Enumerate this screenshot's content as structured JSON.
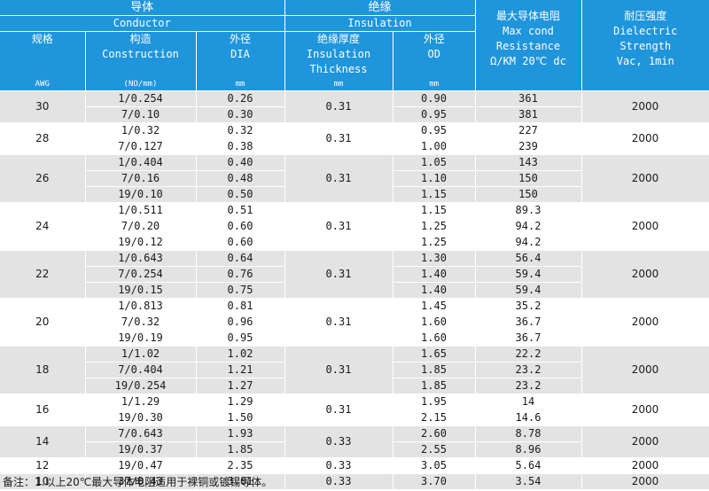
{
  "header": {
    "conductor_zh": "导体",
    "conductor_en": "Conductor",
    "insulation_zh": "绝缘",
    "insulation_en": "Insulation",
    "gauge_zh": "规格",
    "gauge_unit": "AWG",
    "construction_zh": "构造",
    "construction_en": "Construction",
    "construction_unit": "(NO/mm)",
    "dia_zh": "外径",
    "dia_en": "DIA",
    "dia_unit": "mm",
    "thickness_zh": "绝缘厚度",
    "thickness_en1": "Insulation",
    "thickness_en2": "Thickness",
    "thickness_unit": "mm",
    "od_zh": "外径",
    "od_en": "OD",
    "od_unit": "mm",
    "resistance_zh": "最大导体电阻",
    "resistance_en1": "Max cond",
    "resistance_en2": "Resistance",
    "resistance_en3": "Ω/KM 20℃ dc",
    "dielectric_zh": "耐压强度",
    "dielectric_en1": "Dielectric",
    "dielectric_en2": "Strength",
    "dielectric_en3": "Vac, 1min"
  },
  "groups": [
    {
      "awg": "30",
      "thickness": "0.31",
      "strength": "2000",
      "rows": [
        {
          "construction": "1/0.254",
          "dia": "0.26",
          "od": "0.90",
          "resistance": "361"
        },
        {
          "construction": "7/0.10",
          "dia": "0.30",
          "od": "0.95",
          "resistance": "381"
        }
      ]
    },
    {
      "awg": "28",
      "thickness": "0.31",
      "strength": "2000",
      "rows": [
        {
          "construction": "1/0.32",
          "dia": "0.32",
          "od": "0.95",
          "resistance": "227"
        },
        {
          "construction": "7/0.127",
          "dia": "0.38",
          "od": "1.00",
          "resistance": "239"
        }
      ]
    },
    {
      "awg": "26",
      "thickness": "0.31",
      "strength": "2000",
      "rows": [
        {
          "construction": "1/0.404",
          "dia": "0.40",
          "od": "1.05",
          "resistance": "143"
        },
        {
          "construction": "7/0.16",
          "dia": "0.48",
          "od": "1.10",
          "resistance": "150"
        },
        {
          "construction": "19/0.10",
          "dia": "0.50",
          "od": "1.15",
          "resistance": "150"
        }
      ]
    },
    {
      "awg": "24",
      "thickness": "0.31",
      "strength": "2000",
      "rows": [
        {
          "construction": "1/0.511",
          "dia": "0.51",
          "od": "1.15",
          "resistance": "89.3"
        },
        {
          "construction": "7/0.20",
          "dia": "0.60",
          "od": "1.25",
          "resistance": "94.2"
        },
        {
          "construction": "19/0.12",
          "dia": "0.60",
          "od": "1.25",
          "resistance": "94.2"
        }
      ]
    },
    {
      "awg": "22",
      "thickness": "0.31",
      "strength": "2000",
      "rows": [
        {
          "construction": "1/0.643",
          "dia": "0.64",
          "od": "1.30",
          "resistance": "56.4"
        },
        {
          "construction": "7/0.254",
          "dia": "0.76",
          "od": "1.40",
          "resistance": "59.4"
        },
        {
          "construction": "19/0.15",
          "dia": "0.75",
          "od": "1.40",
          "resistance": "59.4"
        }
      ]
    },
    {
      "awg": "20",
      "thickness": "0.31",
      "strength": "2000",
      "rows": [
        {
          "construction": "1/0.813",
          "dia": "0.81",
          "od": "1.45",
          "resistance": "35.2"
        },
        {
          "construction": "7/0.32",
          "dia": "0.96",
          "od": "1.60",
          "resistance": "36.7"
        },
        {
          "construction": "19/0.19",
          "dia": "0.95",
          "od": "1.60",
          "resistance": "36.7"
        }
      ]
    },
    {
      "awg": "18",
      "thickness": "0.31",
      "strength": "2000",
      "rows": [
        {
          "construction": "1/1.02",
          "dia": "1.02",
          "od": "1.65",
          "resistance": "22.2"
        },
        {
          "construction": "7/0.404",
          "dia": "1.21",
          "od": "1.85",
          "resistance": "23.2"
        },
        {
          "construction": "19/0.254",
          "dia": "1.27",
          "od": "1.85",
          "resistance": "23.2"
        }
      ]
    },
    {
      "awg": "16",
      "thickness": "0.31",
      "strength": "2000",
      "rows": [
        {
          "construction": "1/1.29",
          "dia": "1.29",
          "od": "1.95",
          "resistance": "14"
        },
        {
          "construction": "19/0.30",
          "dia": "1.50",
          "od": "2.15",
          "resistance": "14.6"
        }
      ]
    },
    {
      "awg": "14",
      "thickness": "0.33",
      "strength": "2000",
      "rows": [
        {
          "construction": "7/0.643",
          "dia": "1.93",
          "od": "2.60",
          "resistance": "8.78"
        },
        {
          "construction": "19/0.37",
          "dia": "1.85",
          "od": "2.55",
          "resistance": "8.96"
        }
      ]
    },
    {
      "awg": "12",
      "thickness": "0.33",
      "strength": "2000",
      "rows": [
        {
          "construction": "19/0.47",
          "dia": "2.35",
          "od": "3.05",
          "resistance": "5.64"
        }
      ]
    },
    {
      "awg": "10",
      "thickness": "0.33",
      "strength": "2000",
      "rows": [
        {
          "construction": "37/0.43",
          "dia": "3.01",
          "od": "3.70",
          "resistance": "3.54"
        }
      ]
    }
  ],
  "note": "备注：1.以上20℃最大导体电阻适用于裸铜或镀锡导体。",
  "colors": {
    "header_bg": "#1f95dc",
    "header_text": "#ffffff",
    "row_shade": "#e3e3e3",
    "row_plain": "#ffffff"
  }
}
